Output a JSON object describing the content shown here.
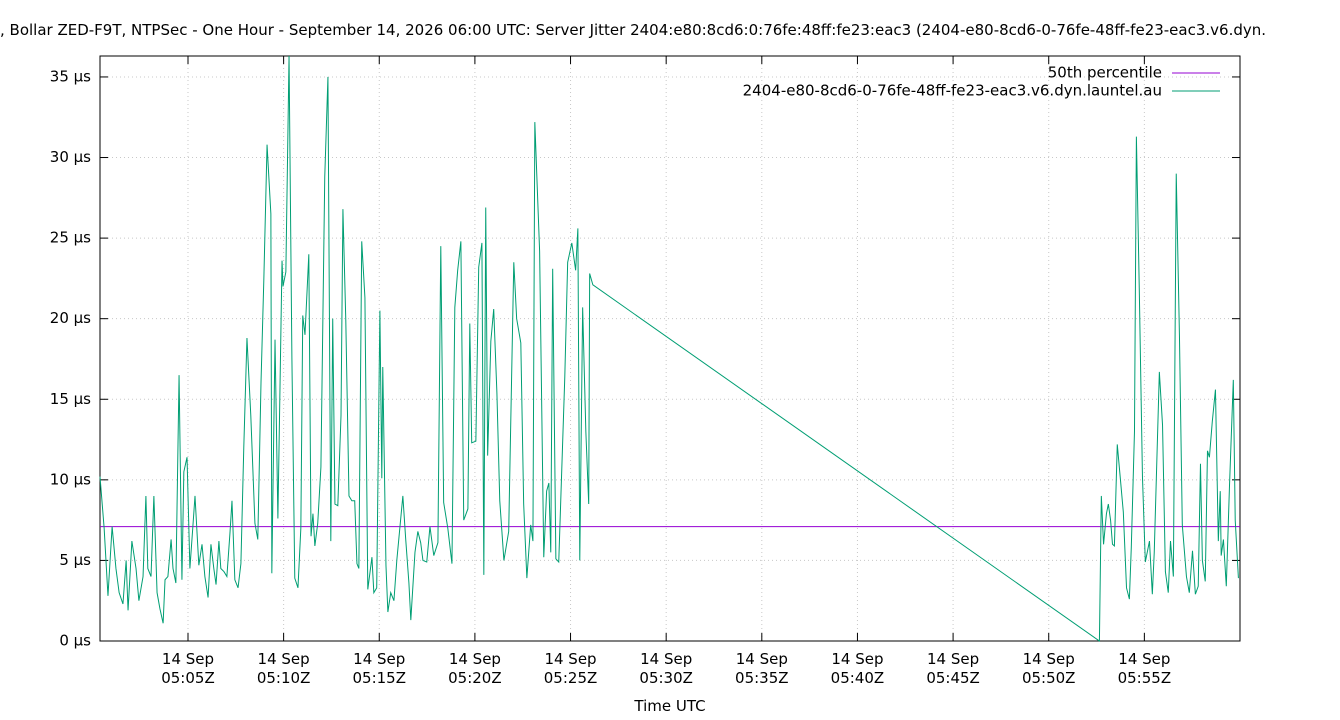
{
  "chart_data": {
    "type": "line",
    "title": ", Bollar ZED-F9T, NTPSec - One Hour - September 14, 2026 06:00 UTC: Server Jitter 2404:e80:8cd6:0:76fe:48ff:fe23:eac3 (2404-e80-8cd6-0-76fe-48ff-fe23-eac3.v6.dyn.",
    "xlabel": "Time UTC",
    "xlim": [
      "05:00:24",
      "06:00:00"
    ],
    "ylim": [
      0,
      36.3
    ],
    "yticks": [
      {
        "value": 0,
        "label": "0 µs"
      },
      {
        "value": 5,
        "label": "5 µs"
      },
      {
        "value": 10,
        "label": "10 µs"
      },
      {
        "value": 15,
        "label": "15 µs"
      },
      {
        "value": 20,
        "label": "20 µs"
      },
      {
        "value": 25,
        "label": "25 µs"
      },
      {
        "value": 30,
        "label": "30 µs"
      },
      {
        "value": 35,
        "label": "35 µs"
      }
    ],
    "xticks": [
      {
        "value": "05:05:00",
        "label": "14 Sep\n05:05Z"
      },
      {
        "value": "05:10:00",
        "label": "14 Sep\n05:10Z"
      },
      {
        "value": "05:15:00",
        "label": "14 Sep\n05:15Z"
      },
      {
        "value": "05:20:00",
        "label": "14 Sep\n05:20Z"
      },
      {
        "value": "05:25:00",
        "label": "14 Sep\n05:25Z"
      },
      {
        "value": "05:30:00",
        "label": "14 Sep\n05:30Z"
      },
      {
        "value": "05:35:00",
        "label": "14 Sep\n05:35Z"
      },
      {
        "value": "05:40:00",
        "label": "14 Sep\n05:40Z"
      },
      {
        "value": "05:45:00",
        "label": "14 Sep\n05:45Z"
      },
      {
        "value": "05:50:00",
        "label": "14 Sep\n05:50Z"
      },
      {
        "value": "05:55:00",
        "label": "14 Sep\n05:55Z"
      }
    ],
    "grid": true,
    "legend": "top-right",
    "series": [
      {
        "name": "50th percentile",
        "color": "#9400d3",
        "x": [
          "05:00:24",
          "06:00:00"
        ],
        "values": [
          7.1,
          7.1
        ]
      },
      {
        "name": "2404-e80-8cd6-0-76fe-48ff-fe23-eac3.v6.dyn.launtel.au",
        "color": "#009e73",
        "x": [
          "05:00:24",
          "05:00:37",
          "05:00:49",
          "05:01:02",
          "05:01:14",
          "05:01:24",
          "05:01:36",
          "05:01:46",
          "05:01:52",
          "05:02:04",
          "05:02:17",
          "05:02:26",
          "05:02:39",
          "05:02:48",
          "05:02:54",
          "05:03:04",
          "05:03:13",
          "05:03:23",
          "05:03:32",
          "05:03:42",
          "05:03:48",
          "05:03:57",
          "05:04:07",
          "05:04:13",
          "05:04:22",
          "05:04:32",
          "05:04:41",
          "05:04:47",
          "05:04:57",
          "05:05:06",
          "05:05:16",
          "05:05:22",
          "05:05:34",
          "05:05:44",
          "05:05:53",
          "05:06:03",
          "05:06:12",
          "05:06:21",
          "05:06:28",
          "05:06:37",
          "05:06:43",
          "05:06:53",
          "05:07:02",
          "05:07:12",
          "05:07:18",
          "05:07:27",
          "05:07:37",
          "05:07:46",
          "05:07:55",
          "05:08:05",
          "05:08:17",
          "05:08:30",
          "05:08:39",
          "05:08:49",
          "05:08:58",
          "05:09:08",
          "05:09:20",
          "05:09:23",
          "05:09:33",
          "05:09:42",
          "05:09:55",
          "05:09:58",
          "05:10:07",
          "05:10:17",
          "05:10:26",
          "05:10:35",
          "05:10:45",
          "05:10:54",
          "05:11:00",
          "05:11:07",
          "05:11:19",
          "05:11:26",
          "05:11:32",
          "05:11:38",
          "05:11:47",
          "05:11:57",
          "05:12:09",
          "05:12:19",
          "05:12:28",
          "05:12:34",
          "05:12:41",
          "05:12:50",
          "05:13:00",
          "05:13:06",
          "05:13:15",
          "05:13:25",
          "05:13:34",
          "05:13:43",
          "05:13:50",
          "05:13:56",
          "05:14:05",
          "05:14:15",
          "05:14:24",
          "05:14:37",
          "05:14:43",
          "05:14:52",
          "05:15:02",
          "05:15:08",
          "05:15:11",
          "05:15:21",
          "05:15:27",
          "05:15:36",
          "05:15:46",
          "05:15:55",
          "05:16:14",
          "05:16:23",
          "05:16:33",
          "05:16:39",
          "05:16:52",
          "05:17:01",
          "05:17:10",
          "05:17:17",
          "05:17:29",
          "05:17:39",
          "05:17:51",
          "05:18:04",
          "05:18:13",
          "05:18:22",
          "05:18:35",
          "05:18:48",
          "05:18:57",
          "05:19:06",
          "05:19:16",
          "05:19:25",
          "05:19:38",
          "05:19:44",
          "05:19:50",
          "05:20:03",
          "05:20:12",
          "05:20:22",
          "05:20:28",
          "05:20:34",
          "05:20:40",
          "05:20:50",
          "05:20:59",
          "05:21:09",
          "05:21:18",
          "05:21:31",
          "05:21:46",
          "05:22:02",
          "05:22:11",
          "05:22:24",
          "05:22:33",
          "05:22:43",
          "05:22:55",
          "05:23:02",
          "05:23:08",
          "05:23:23",
          "05:23:36",
          "05:23:45",
          "05:23:52",
          "05:23:58",
          "05:24:04",
          "05:24:14",
          "05:24:23",
          "05:24:42",
          "05:24:51",
          "05:25:04",
          "05:25:16",
          "05:25:23",
          "05:25:29",
          "05:25:38",
          "05:25:48",
          "05:25:57",
          "05:26:00",
          "05:26:10",
          "05:52:39",
          "05:52:45",
          "05:52:52",
          "05:53:01",
          "05:53:07",
          "05:53:14",
          "05:53:20",
          "05:53:26",
          "05:53:35",
          "05:53:45",
          "05:53:54",
          "05:54:04",
          "05:54:13",
          "05:54:19",
          "05:54:29",
          "05:54:35",
          "05:54:44",
          "05:54:54",
          "05:55:03",
          "05:55:16",
          "05:55:25",
          "05:55:31",
          "05:55:47",
          "05:55:57",
          "05:56:06",
          "05:56:15",
          "05:56:22",
          "05:56:31",
          "05:56:40",
          "05:56:50",
          "05:56:59",
          "05:57:12",
          "05:57:21",
          "05:57:31",
          "05:57:40",
          "05:57:49",
          "05:57:56",
          "05:58:02",
          "05:58:11",
          "05:58:18",
          "05:58:24",
          "05:58:33",
          "05:58:43",
          "05:58:52",
          "05:58:58",
          "05:59:01",
          "05:59:08",
          "05:59:17",
          "05:59:27",
          "05:59:39",
          "05:59:45",
          "05:59:55"
        ],
        "values": [
          10.2,
          7,
          2.8,
          7.1,
          4.5,
          3,
          2.3,
          5,
          1.9,
          6.2,
          4.5,
          2.5,
          4,
          9,
          4.5,
          4,
          9,
          3,
          2,
          1.1,
          3.8,
          4,
          6.3,
          4.5,
          3.6,
          16.5,
          3.8,
          10.5,
          11.4,
          4.5,
          7.3,
          9,
          4.7,
          6,
          4,
          2.7,
          6,
          4.5,
          3.5,
          6.2,
          4.5,
          4.3,
          4,
          6.8,
          8.7,
          3.8,
          3.3,
          4.8,
          12,
          18.8,
          14,
          7.3,
          6.3,
          16,
          22.5,
          30.8,
          26.5,
          4.2,
          18.7,
          7.6,
          23.6,
          22,
          22.9,
          36.3,
          17.5,
          3.9,
          3.3,
          7,
          20.2,
          19,
          24,
          6.5,
          7.9,
          5.9,
          7.3,
          10.8,
          28.8,
          35,
          6.2,
          20,
          8.5,
          8.4,
          14,
          26.8,
          19.9,
          9,
          8.7,
          8.7,
          4.8,
          4.5,
          24.8,
          21.3,
          3.2,
          5.2,
          3,
          3.3,
          20.5,
          10.1,
          17,
          4.7,
          1.8,
          3,
          2.5,
          5,
          9,
          6.3,
          3.6,
          1.3,
          5.5,
          6.8,
          6.1,
          5,
          4.9,
          7.1,
          5.3,
          6.1,
          24.5,
          8.6,
          7,
          4.8,
          20.7,
          23,
          24.8,
          7.5,
          8.2,
          19.7,
          12.3,
          12.4,
          23.2,
          24.7,
          4.1,
          26.9,
          11.5,
          18.6,
          20.6,
          15.4,
          8.7,
          5,
          6.8,
          23.5,
          20,
          18.5,
          8.5,
          3.9,
          7.2,
          6.2,
          32.2,
          24.2,
          5.2,
          9.3,
          9.8,
          5.5,
          23.1,
          5.1,
          4.9,
          16.4,
          23.5,
          24.7,
          23,
          25.6,
          5,
          20.7,
          13,
          8.5,
          22.8,
          22.1,
          0,
          9,
          6,
          7.9,
          8.5,
          7.5,
          6,
          5.9,
          12.2,
          10,
          8,
          3.3,
          2.6,
          5.8,
          13,
          31.3,
          21.9,
          10.2,
          4.9,
          6.2,
          2.9,
          5.5,
          16.7,
          13.4,
          4.3,
          3,
          6.2,
          4,
          29,
          19,
          7.2,
          4,
          3,
          5.6,
          2.9,
          3.4,
          11,
          5,
          3.7,
          11.8,
          11.4,
          13.6,
          15.6,
          6.2,
          9.3,
          5.3,
          6.3,
          3.4,
          9.6,
          16.2,
          7.5,
          3.9
        ]
      }
    ]
  }
}
